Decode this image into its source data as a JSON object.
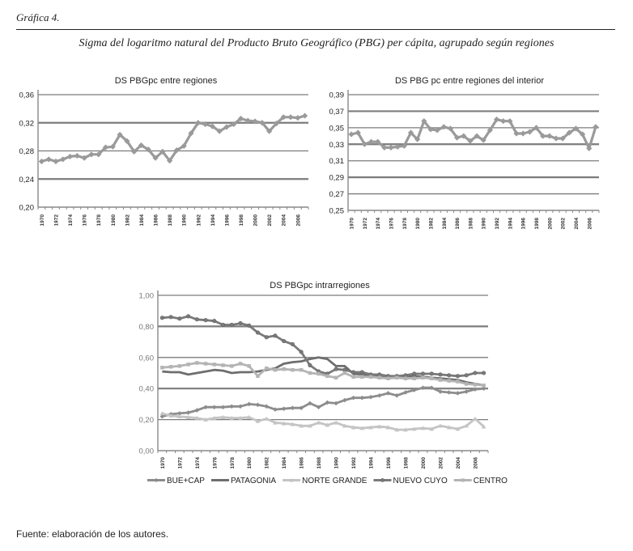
{
  "figure": {
    "label": "Gráfica 4.",
    "title": "Sigma del logaritmo natural del Producto Bruto Geográfico (PBG) per cápita, agrupado según regiones",
    "source": "Fuente: elaboración de los autores."
  },
  "chart_data": [
    {
      "id": "entre-regiones",
      "type": "line",
      "title": "DS PBGpc entre regiones",
      "xlabel": "",
      "ylabel": "",
      "x": [
        1970,
        1971,
        1972,
        1973,
        1974,
        1975,
        1976,
        1977,
        1978,
        1979,
        1980,
        1981,
        1982,
        1983,
        1984,
        1985,
        1986,
        1987,
        1988,
        1989,
        1990,
        1991,
        1992,
        1993,
        1994,
        1995,
        1996,
        1997,
        1998,
        1999,
        2000,
        2001,
        2002,
        2003,
        2004,
        2005,
        2006,
        2007
      ],
      "x_tick_labels": [
        "1970",
        "1972",
        "1974",
        "1976",
        "1978",
        "1980",
        "1982",
        "1984",
        "1986",
        "1988",
        "1990",
        "1992",
        "1994",
        "1996",
        "1998",
        "2000",
        "2002",
        "2004",
        "2006"
      ],
      "y_tick_labels": [
        "0,36",
        "0,32",
        "0,28",
        "0,24",
        "0,20"
      ],
      "ylim": [
        0.2,
        0.36
      ],
      "grid": true,
      "legend": "none",
      "series": [
        {
          "name": "DS PBGpc entre regiones",
          "color": "#9a9a9a",
          "marker": "diamond",
          "values": [
            0.265,
            0.268,
            0.265,
            0.268,
            0.272,
            0.273,
            0.27,
            0.275,
            0.275,
            0.285,
            0.286,
            0.303,
            0.294,
            0.279,
            0.288,
            0.282,
            0.27,
            0.279,
            0.266,
            0.281,
            0.287,
            0.305,
            0.32,
            0.318,
            0.315,
            0.308,
            0.314,
            0.318,
            0.326,
            0.323,
            0.322,
            0.32,
            0.308,
            0.319,
            0.328,
            0.328,
            0.327,
            0.33
          ]
        }
      ]
    },
    {
      "id": "entre-regiones-interior",
      "type": "line",
      "title": "DS PBG pc entre regiones del interior",
      "xlabel": "",
      "ylabel": "",
      "x": [
        1970,
        1971,
        1972,
        1973,
        1974,
        1975,
        1976,
        1977,
        1978,
        1979,
        1980,
        1981,
        1982,
        1983,
        1984,
        1985,
        1986,
        1987,
        1988,
        1989,
        1990,
        1991,
        1992,
        1993,
        1994,
        1995,
        1996,
        1997,
        1998,
        1999,
        2000,
        2001,
        2002,
        2003,
        2004,
        2005,
        2006,
        2007
      ],
      "x_tick_labels": [
        "1970",
        "1972",
        "1974",
        "1976",
        "1978",
        "1980",
        "1982",
        "1984",
        "1986",
        "1988",
        "1990",
        "1992",
        "1994",
        "1996",
        "1998",
        "2000",
        "2002",
        "2004",
        "2006"
      ],
      "y_tick_labels": [
        "0,39",
        "0,37",
        "0,35",
        "0,33",
        "0,31",
        "0,29",
        "0,27",
        "0,25"
      ],
      "ylim": [
        0.25,
        0.39
      ],
      "grid": true,
      "legend": "none",
      "series": [
        {
          "name": "DS PBG pc entre regiones del interior",
          "color": "#9a9a9a",
          "marker": "diamond",
          "values": [
            0.342,
            0.344,
            0.33,
            0.333,
            0.333,
            0.326,
            0.326,
            0.327,
            0.328,
            0.344,
            0.336,
            0.358,
            0.348,
            0.347,
            0.351,
            0.349,
            0.338,
            0.34,
            0.334,
            0.34,
            0.335,
            0.347,
            0.36,
            0.358,
            0.358,
            0.343,
            0.343,
            0.345,
            0.35,
            0.34,
            0.34,
            0.337,
            0.337,
            0.344,
            0.349,
            0.342,
            0.325,
            0.351
          ]
        }
      ]
    },
    {
      "id": "intrarregiones",
      "type": "line",
      "title": "DS PBGpc intrarregiones",
      "xlabel": "",
      "ylabel": "",
      "x": [
        1970,
        1971,
        1972,
        1973,
        1974,
        1975,
        1976,
        1977,
        1978,
        1979,
        1980,
        1981,
        1982,
        1983,
        1984,
        1985,
        1986,
        1987,
        1988,
        1989,
        1990,
        1991,
        1992,
        1993,
        1994,
        1995,
        1996,
        1997,
        1998,
        1999,
        2000,
        2001,
        2002,
        2003,
        2004,
        2005,
        2006,
        2007
      ],
      "x_tick_labels": [
        "1970",
        "1972",
        "1974",
        "1976",
        "1978",
        "1980",
        "1982",
        "1984",
        "1986",
        "1988",
        "1990",
        "1992",
        "1994",
        "1996",
        "1998",
        "2000",
        "2002",
        "2004",
        "2006"
      ],
      "y_tick_labels": [
        "1,00",
        "0,80",
        "0,60",
        "0,40",
        "0,20",
        "0,00"
      ],
      "ylim": [
        0.0,
        1.0
      ],
      "grid": true,
      "legend": "bottom",
      "series": [
        {
          "name": "BUE+CAP",
          "color": "#8c8c8c",
          "marker": "diamond",
          "values": [
            0.22,
            0.235,
            0.24,
            0.245,
            0.26,
            0.28,
            0.28,
            0.28,
            0.285,
            0.285,
            0.3,
            0.295,
            0.285,
            0.265,
            0.27,
            0.275,
            0.275,
            0.305,
            0.28,
            0.31,
            0.305,
            0.325,
            0.34,
            0.34,
            0.345,
            0.355,
            0.37,
            0.355,
            0.375,
            0.39,
            0.405,
            0.405,
            0.38,
            0.375,
            0.37,
            0.38,
            0.395,
            0.4
          ]
        },
        {
          "name": "PATAGONIA",
          "color": "#6e6e6e",
          "marker": "none",
          "values": [
            0.51,
            0.505,
            0.505,
            0.49,
            0.5,
            0.51,
            0.52,
            0.515,
            0.5,
            0.505,
            0.505,
            0.51,
            0.52,
            0.53,
            0.56,
            0.57,
            0.575,
            0.59,
            0.6,
            0.59,
            0.545,
            0.545,
            0.495,
            0.49,
            0.485,
            0.48,
            0.48,
            0.475,
            0.48,
            0.48,
            0.475,
            0.47,
            0.465,
            0.46,
            0.455,
            0.44,
            0.43,
            0.42
          ]
        },
        {
          "name": "NORTE GRANDE",
          "color": "#c4c4c4",
          "marker": "triangle",
          "values": [
            0.24,
            0.225,
            0.22,
            0.215,
            0.21,
            0.2,
            0.21,
            0.215,
            0.21,
            0.21,
            0.215,
            0.19,
            0.205,
            0.18,
            0.175,
            0.17,
            0.16,
            0.16,
            0.18,
            0.165,
            0.18,
            0.16,
            0.15,
            0.145,
            0.15,
            0.155,
            0.15,
            0.135,
            0.135,
            0.14,
            0.145,
            0.14,
            0.16,
            0.15,
            0.14,
            0.16,
            0.205,
            0.155
          ]
        },
        {
          "name": "NUEVO CUYO",
          "color": "#7a7a7a",
          "marker": "circle",
          "values": [
            0.855,
            0.86,
            0.85,
            0.865,
            0.845,
            0.84,
            0.835,
            0.81,
            0.81,
            0.82,
            0.805,
            0.76,
            0.73,
            0.74,
            0.705,
            0.685,
            0.635,
            0.55,
            0.51,
            0.495,
            0.525,
            0.52,
            0.505,
            0.505,
            0.49,
            0.49,
            0.48,
            0.48,
            0.485,
            0.495,
            0.495,
            0.495,
            0.49,
            0.485,
            0.48,
            0.485,
            0.5,
            0.5
          ]
        },
        {
          "name": "CENTRO",
          "color": "#b4b4b4",
          "marker": "square",
          "values": [
            0.535,
            0.54,
            0.545,
            0.555,
            0.565,
            0.56,
            0.555,
            0.55,
            0.545,
            0.56,
            0.545,
            0.48,
            0.53,
            0.52,
            0.525,
            0.52,
            0.52,
            0.5,
            0.495,
            0.48,
            0.47,
            0.5,
            0.475,
            0.475,
            0.475,
            0.47,
            0.465,
            0.47,
            0.465,
            0.465,
            0.47,
            0.465,
            0.455,
            0.45,
            0.445,
            0.43,
            0.425,
            0.42
          ]
        }
      ]
    }
  ]
}
